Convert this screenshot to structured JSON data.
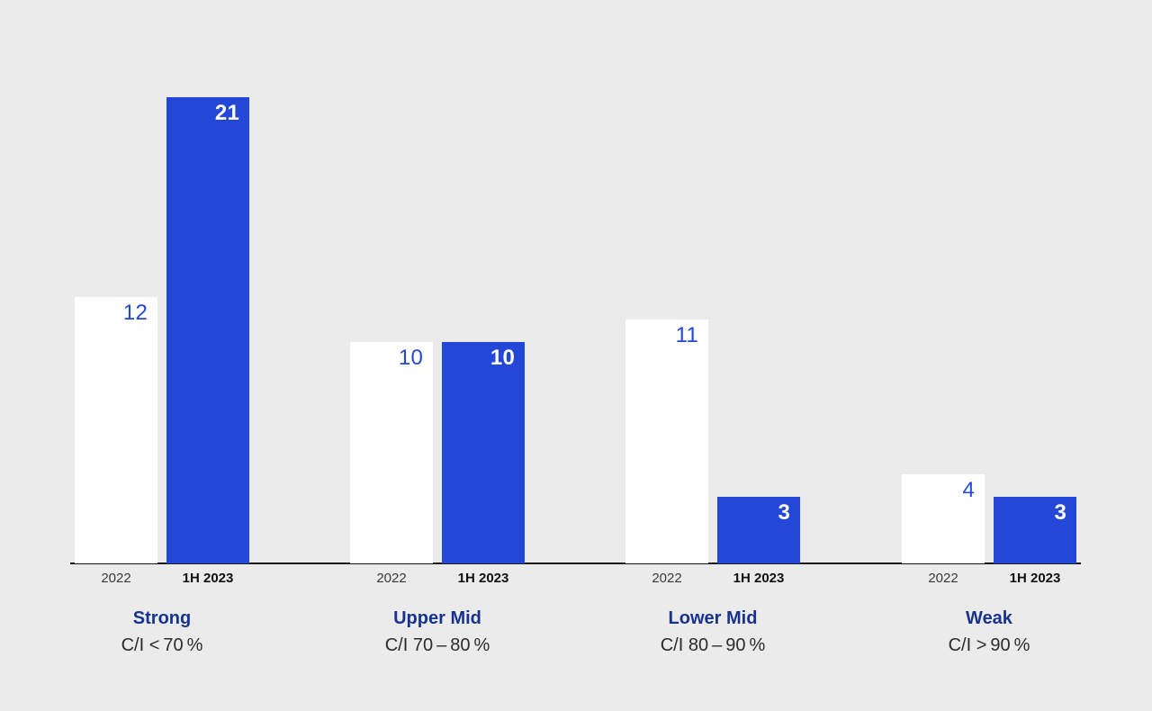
{
  "page": {
    "background": "#EBEBEB"
  },
  "chart_data": {
    "type": "bar",
    "title": "",
    "categories": [
      "Strong",
      "Upper Mid",
      "Lower Mid",
      "Weak"
    ],
    "category_sublabels": [
      "C/I < 70 %",
      "C/I 70 – 80 %",
      "C/I 80 – 90 %",
      "C/I > 90 %"
    ],
    "series": [
      {
        "name": "2022",
        "values": [
          12,
          10,
          11,
          4
        ],
        "bar_color": "#FFFFFF",
        "label_color": "#2348D7",
        "label_weight": "normal",
        "tick_color": "#3A3A3A",
        "tick_weight": "normal"
      },
      {
        "name": "1H 2023",
        "values": [
          21,
          10,
          3,
          3
        ],
        "bar_color": "#2348D7",
        "label_color": "#FFFFFF",
        "label_weight": "bold",
        "tick_color": "#111111",
        "tick_weight": "bold"
      }
    ],
    "ylim": [
      0,
      21
    ],
    "grid": false,
    "legend": "none",
    "value_label_position": "inside-top-right",
    "axis_line_color": "#1A1A1A",
    "category_title_color": "#17338F",
    "category_sublabel_color": "#2B2B2B"
  }
}
